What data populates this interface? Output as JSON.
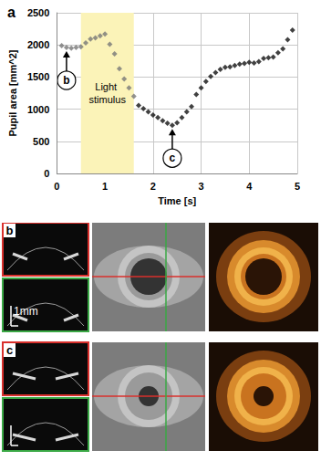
{
  "chart_data": {
    "type": "scatter",
    "panel": "a",
    "x_label": "Time [s]",
    "y_label": "Pupil area [mm^2]",
    "x": [
      0.1,
      0.2,
      0.3,
      0.4,
      0.5,
      0.6,
      0.7,
      0.8,
      0.9,
      1.0,
      1.1,
      1.2,
      1.3,
      1.4,
      1.5,
      1.6,
      1.7,
      1.8,
      1.9,
      2.0,
      2.1,
      2.2,
      2.3,
      2.4,
      2.5,
      2.6,
      2.7,
      2.8,
      2.9,
      3.0,
      3.1,
      3.2,
      3.3,
      3.4,
      3.5,
      3.6,
      3.7,
      3.8,
      3.9,
      4.0,
      4.1,
      4.2,
      4.3,
      4.4,
      4.5,
      4.6,
      4.7,
      4.8,
      4.9
    ],
    "values": [
      1990,
      1960,
      1950,
      1960,
      1970,
      2030,
      2090,
      2110,
      2140,
      2170,
      2010,
      1860,
      1630,
      1470,
      1330,
      1200,
      1060,
      1010,
      960,
      910,
      870,
      820,
      780,
      750,
      790,
      870,
      960,
      1040,
      1230,
      1330,
      1430,
      1510,
      1570,
      1620,
      1650,
      1660,
      1680,
      1700,
      1710,
      1730,
      1720,
      1740,
      1790,
      1800,
      1810,
      1880,
      1940,
      2080,
      2230
    ],
    "colors": [
      "#777777",
      "#777777",
      "#777777",
      "#777777",
      "#777777",
      "#777777",
      "#777777",
      "#777777",
      "#777777",
      "#777777",
      "#777777",
      "#777777",
      "#777777",
      "#777777",
      "#777777",
      "#777777",
      "#111111",
      "#111111",
      "#111111",
      "#111111",
      "#111111",
      "#111111",
      "#111111",
      "#111111",
      "#111111",
      "#111111",
      "#111111",
      "#111111",
      "#111111",
      "#111111",
      "#111111",
      "#111111",
      "#111111",
      "#111111",
      "#111111",
      "#111111",
      "#111111",
      "#111111",
      "#111111",
      "#111111",
      "#111111",
      "#111111",
      "#111111",
      "#111111",
      "#111111",
      "#111111",
      "#111111",
      "#111111",
      "#111111"
    ],
    "marker": "diamond",
    "xlim": [
      0,
      5
    ],
    "xticks": [
      0,
      1,
      2,
      3,
      4,
      5
    ],
    "ylim": [
      0,
      2500
    ],
    "yticks": [
      0,
      500,
      1000,
      1500,
      2000,
      2500
    ],
    "grid": true,
    "shaded_region": {
      "x": [
        0.5,
        1.6
      ],
      "label": "Light stimulus",
      "color": "#fbf3b8"
    },
    "annotations": [
      {
        "text": "b",
        "x": 0.2,
        "y": 1960
      },
      {
        "text": "c",
        "x": 2.4,
        "y": 750
      }
    ]
  },
  "panels": [
    {
      "label": "b",
      "scale_bar": "1mm"
    },
    {
      "label": "c"
    }
  ]
}
